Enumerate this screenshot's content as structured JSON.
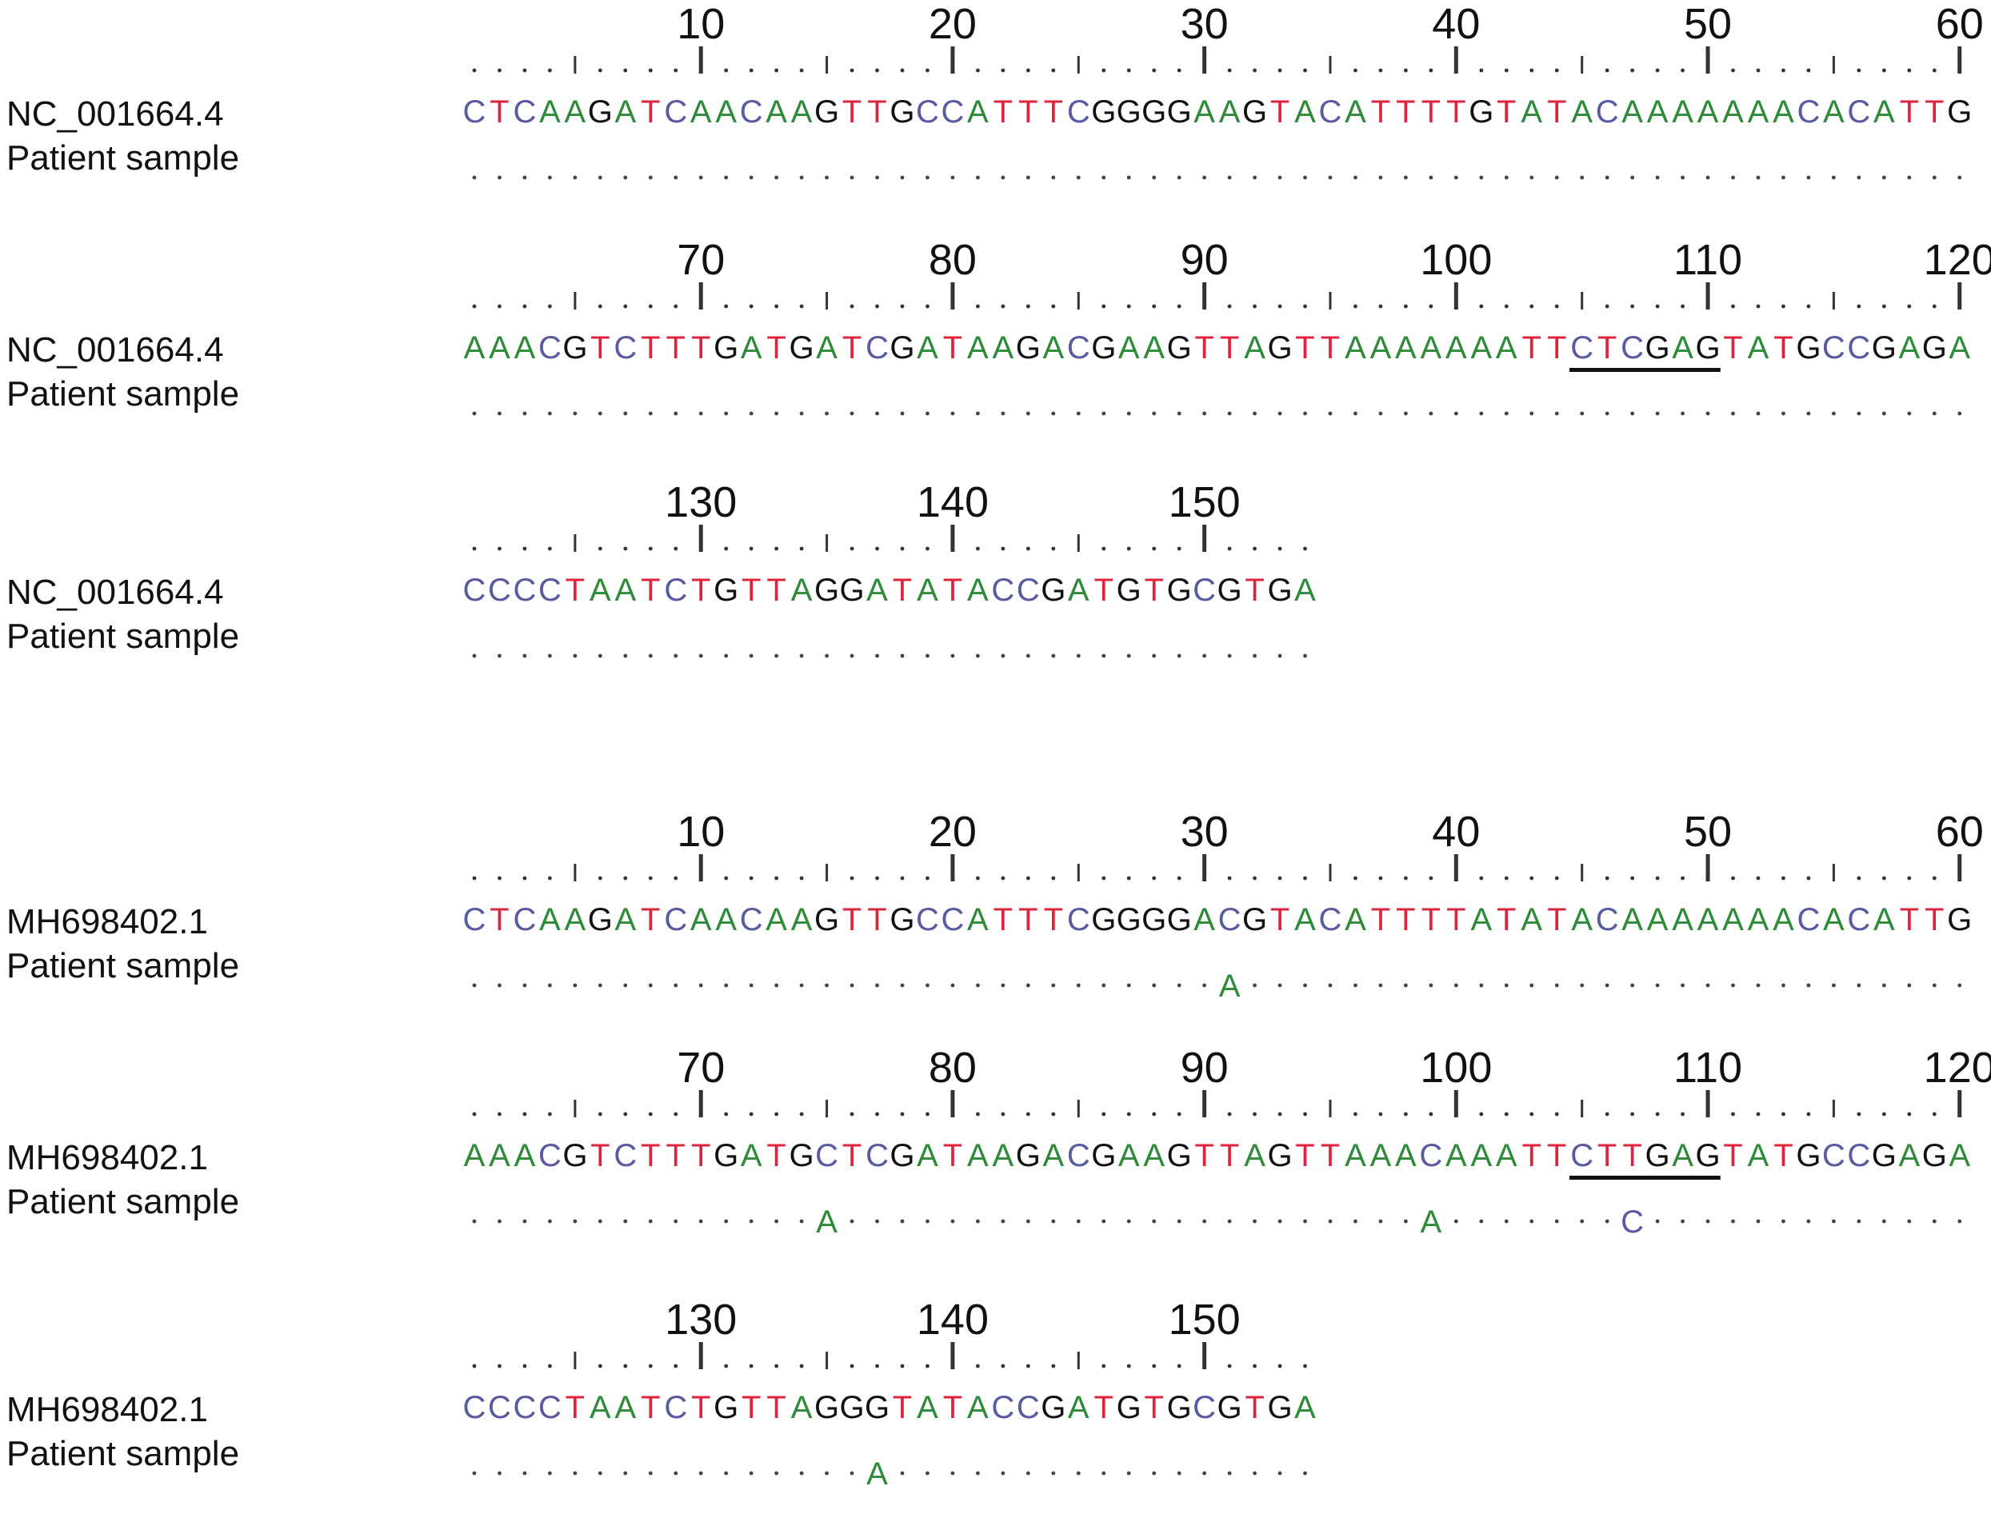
{
  "colors": {
    "A": "#2e8b3a",
    "C": "#5a5aa0",
    "G": "#111111",
    "T": "#e0233c",
    "ruler": "#333333"
  },
  "blocks": [
    {
      "id": "ref-1",
      "numbers": [
        "10",
        "20",
        "30",
        "40",
        "50",
        "60"
      ],
      "label1": "NC_001664.4",
      "label2": "Patient sample",
      "sequence": "CTCAAGATCAACAAGTTGCCATTTCGGGGAAGTACATTTTGTATACAAAAAAACACATTG",
      "variants": []
    },
    {
      "id": "ref-2",
      "numbers": [
        "70",
        "80",
        "90",
        "100",
        "110",
        "120"
      ],
      "label1": "NC_001664.4",
      "label2": "Patient sample",
      "sequence": "AAACGTCTTTGATGATCGATAAGACGAAGTTAGTTAAAAAAATTCTCGAGTATGCCGAGA",
      "variants": [],
      "underline": [
        44,
        49
      ]
    },
    {
      "id": "ref-3",
      "numbers": [
        "130",
        "140",
        "150"
      ],
      "label1": "NC_001664.4",
      "label2": "Patient sample",
      "sequence": "CCCCTAATCTGTTAGGATATACCGATGTGCGTGA",
      "variants": []
    },
    {
      "id": "mh-1",
      "numbers": [
        "10",
        "20",
        "30",
        "40",
        "50",
        "60"
      ],
      "label1": "MH698402.1",
      "label2": "Patient sample",
      "sequence": "CTCAAGATCAACAAGTTGCCATTTCGGGGACGTACATTTTATATACAAAAAAACACATTG",
      "variants": [
        {
          "pos": 30,
          "base": "A"
        }
      ]
    },
    {
      "id": "mh-2",
      "numbers": [
        "70",
        "80",
        "90",
        "100",
        "110",
        "120"
      ],
      "label1": "MH698402.1",
      "label2": "Patient sample",
      "sequence": "AAACGTCTTTGATGCTCGATAAGACGAAGTTAGTTAAACAAATTCTTGAGTATGCCGAGA",
      "variants": [
        {
          "pos": 14,
          "base": "A"
        },
        {
          "pos": 38,
          "base": "A"
        },
        {
          "pos": 46,
          "base": "C"
        }
      ],
      "underline": [
        44,
        49
      ]
    },
    {
      "id": "mh-3",
      "numbers": [
        "130",
        "140",
        "150"
      ],
      "label1": "MH698402.1",
      "label2": "Patient sample",
      "sequence": "CCCCTAATCTGTTAGGGTATACCGATGTGCGTGA",
      "variants": [
        {
          "pos": 16,
          "base": "A"
        }
      ]
    }
  ]
}
